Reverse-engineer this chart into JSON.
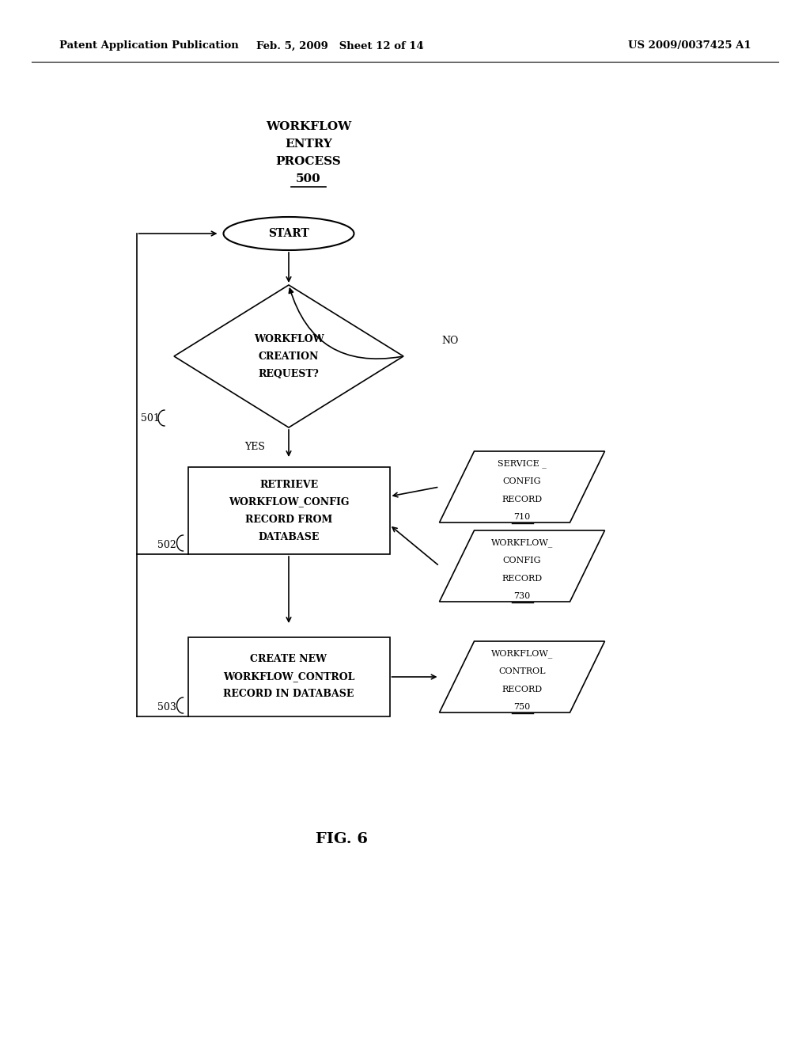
{
  "bg_color": "#ffffff",
  "header_left": "Patent Application Publication",
  "header_mid": "Feb. 5, 2009   Sheet 12 of 14",
  "header_right": "US 2009/0037425 A1",
  "title_lines": [
    "WORKFLOW",
    "ENTRY",
    "PROCESS",
    "500"
  ],
  "fig_label": "FIG. 6",
  "start_label": "START",
  "diamond_lines": [
    "WORKFLOW",
    "CREATION",
    "REQUEST?"
  ],
  "diamond_label": "501",
  "box1_lines": [
    "RETRIEVE",
    "WORKFLOW_CONFIG",
    "RECORD FROM",
    "DATABASE"
  ],
  "box1_label": "502",
  "box2_lines": [
    "CREATE NEW",
    "WORKFLOW_CONTROL",
    "RECORD IN DATABASE"
  ],
  "box2_label": "503",
  "para1_lines": [
    "SERVICE _",
    "CONFIG",
    "RECORD",
    "710"
  ],
  "para2_lines": [
    "WORKFLOW_",
    "CONFIG",
    "RECORD",
    "730"
  ],
  "para3_lines": [
    "WORKFLOW_",
    "CONTROL",
    "RECORD",
    "750"
  ],
  "no_label": "NO",
  "yes_label": "YES"
}
